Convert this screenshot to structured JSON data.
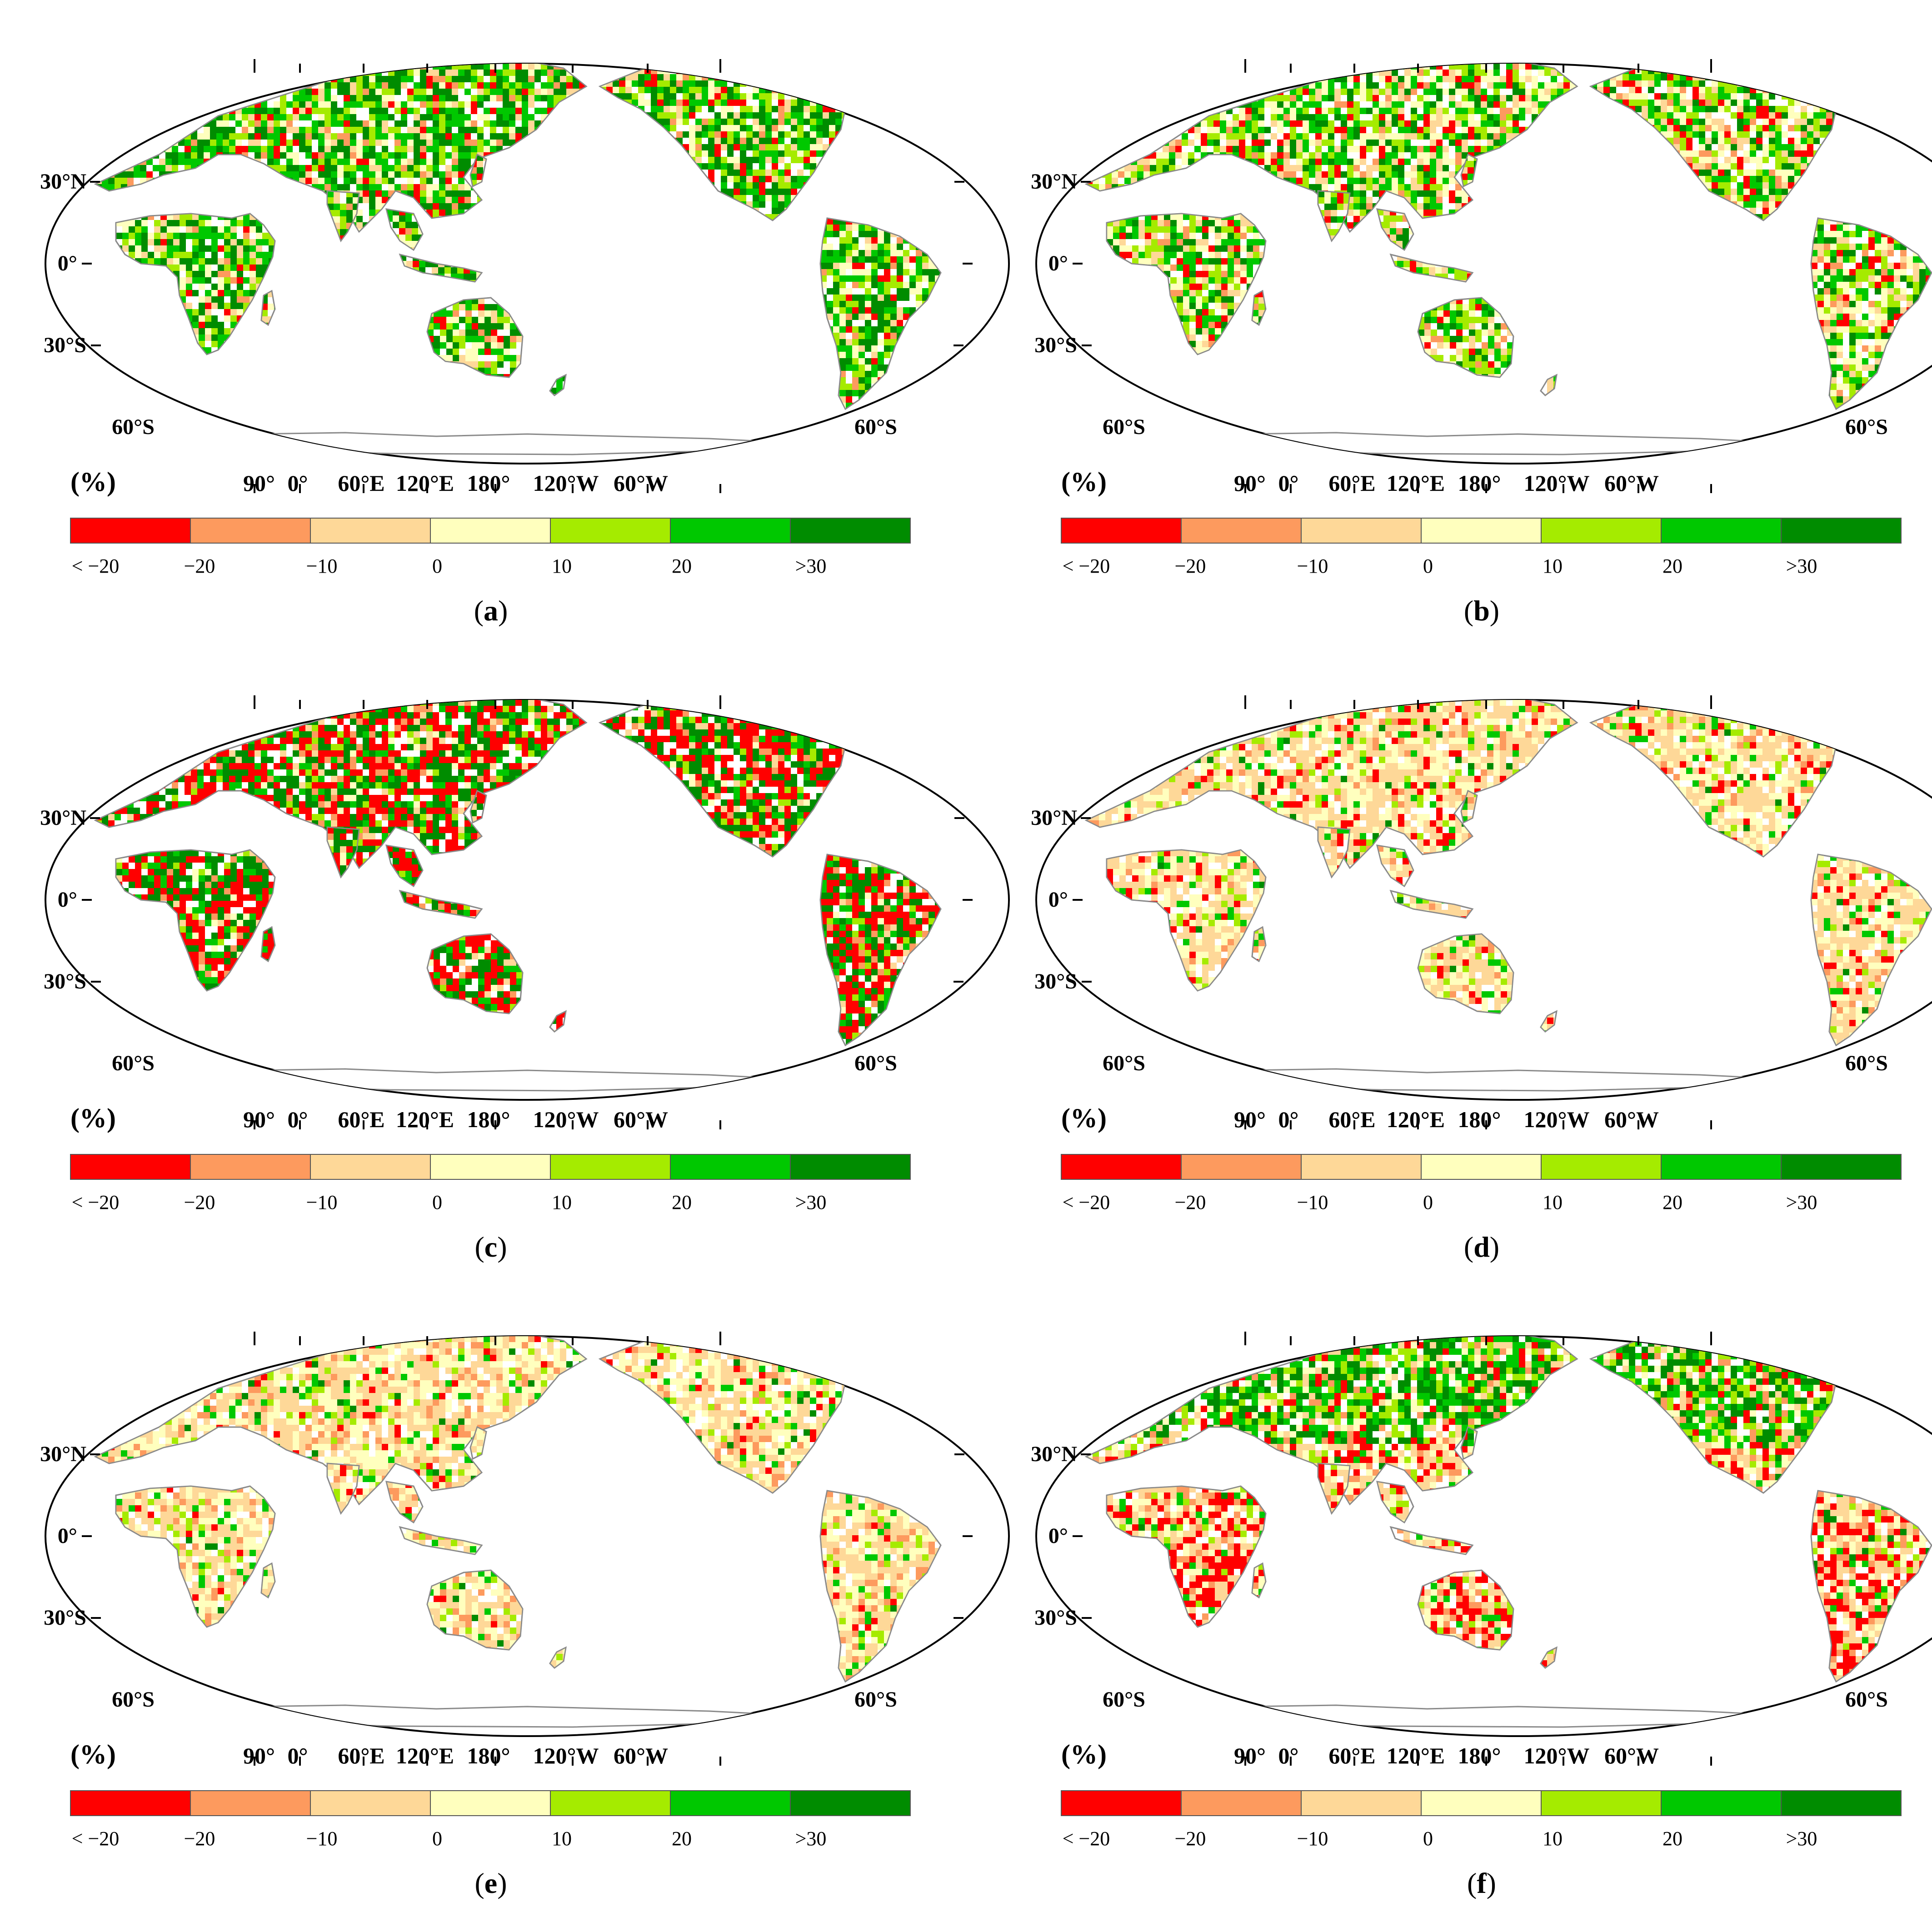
{
  "figure": {
    "panels": [
      {
        "id": "a",
        "caption": "(a)",
        "caption_letter": "a",
        "pattern": "mostly_green"
      },
      {
        "id": "b",
        "caption": "(b)",
        "caption_letter": "b",
        "pattern": "mixed_green"
      },
      {
        "id": "c",
        "caption": "(c)",
        "caption_letter": "c",
        "pattern": "red_green"
      },
      {
        "id": "d",
        "caption": "(d)",
        "caption_letter": "d",
        "pattern": "tan_mixed"
      },
      {
        "id": "e",
        "caption": "(e)",
        "caption_letter": "e",
        "pattern": "tan_light"
      },
      {
        "id": "f",
        "caption": "(f)",
        "caption_letter": "f",
        "pattern": "north_green_south_red"
      }
    ],
    "unit_label": "(%)",
    "latitude_labels": {
      "n30": "30°N",
      "eq": "0°",
      "s30": "30°S",
      "s60_left": "60°S",
      "s60_right": "60°S"
    },
    "longitude_labels": [
      "90°",
      "0°",
      "60°E",
      "120°E",
      "180°",
      "120°W",
      "60°W"
    ],
    "legend": {
      "colors": [
        "#ff0000",
        "#fd9a5e",
        "#fed898",
        "#ffffbe",
        "#a5eb00",
        "#00c800",
        "#008c00"
      ],
      "tick_labels": [
        "< −20",
        "−20",
        "−10",
        "0",
        "10",
        "20",
        ">30"
      ],
      "border_color": "#555555"
    },
    "land_outline_color": "#8a8a8a"
  }
}
